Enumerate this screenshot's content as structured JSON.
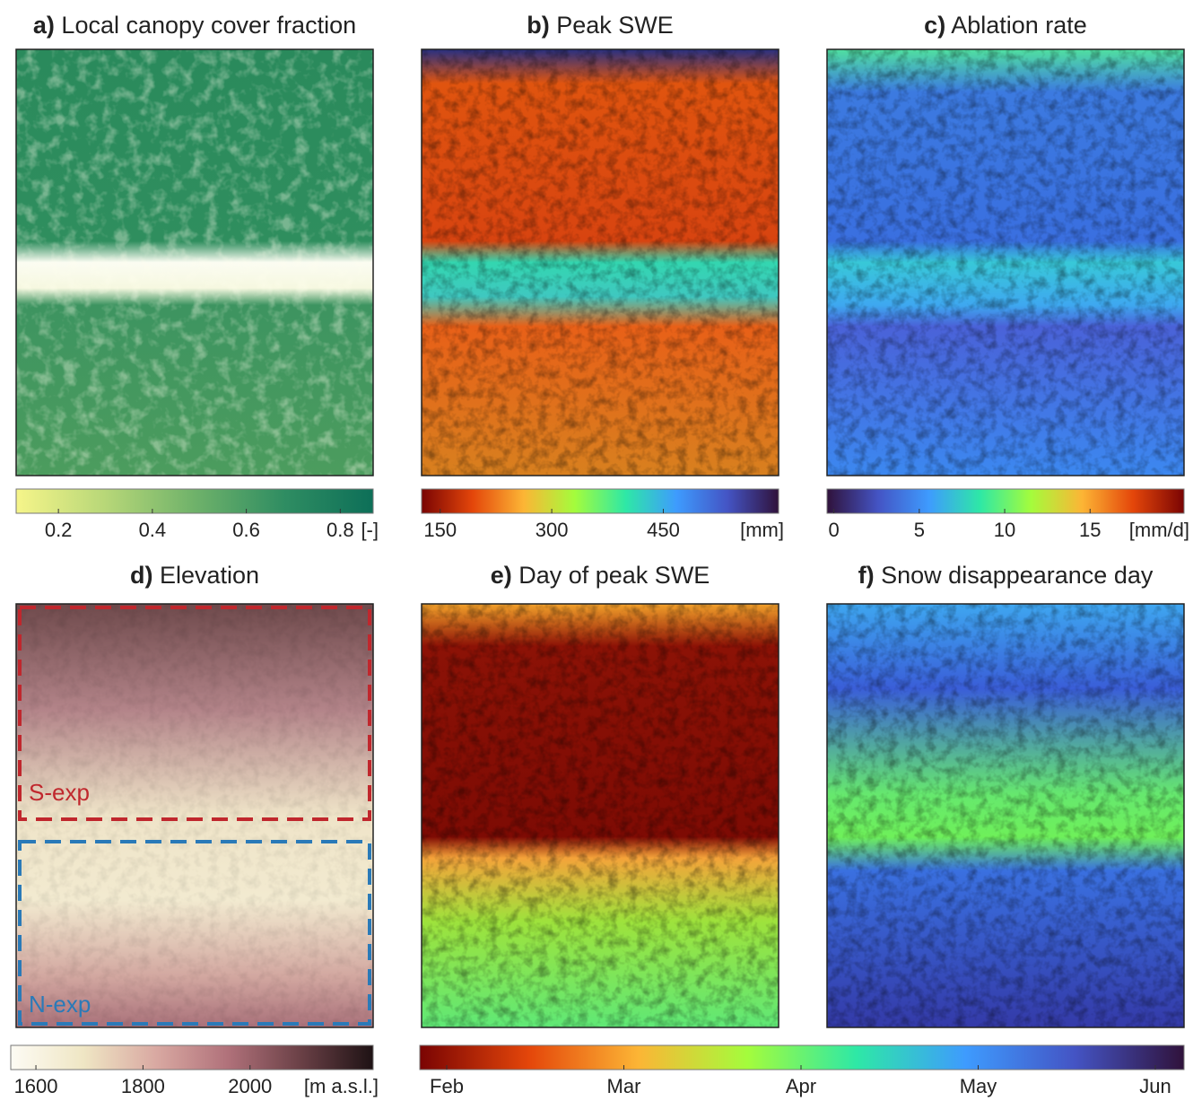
{
  "panels": [
    {
      "letter": "a)",
      "title": "Local canopy cover fraction",
      "colorbar": {
        "range": [
          0.11,
          0.87
        ],
        "ticks": [
          0.2,
          0.4,
          0.6,
          0.8
        ],
        "unit": "[-]",
        "colors": [
          "#f6f58a",
          "#b7d778",
          "#6fb26a",
          "#2f8d62",
          "#0d6f58"
        ]
      }
    },
    {
      "letter": "b)",
      "title": "Peak SWE",
      "colorbar": {
        "range": [
          125,
          605
        ],
        "ticks": [
          150,
          300,
          450
        ],
        "unit": "[mm]",
        "colors": [
          "#7a0403",
          "#e4460a",
          "#fcb535",
          "#a4fc3c",
          "#2ee8a6",
          "#3e9bfe",
          "#4454c4",
          "#30123b"
        ]
      }
    },
    {
      "letter": "c)",
      "title": "Ablation rate",
      "colorbar": {
        "range": [
          -0.4,
          20.5
        ],
        "ticks": [
          0,
          5,
          10,
          15
        ],
        "unit": "[mm/d]",
        "colors": [
          "#30123b",
          "#4454c4",
          "#3e9bfe",
          "#2ee8a6",
          "#a4fc3c",
          "#fcb535",
          "#e4460a",
          "#7a0403"
        ]
      }
    },
    {
      "letter": "d)",
      "title": "Elevation",
      "colorbar": {
        "range": [
          1553,
          2230
        ],
        "ticks": [
          1600,
          1800,
          2000
        ],
        "unit": "[m a.s.l.]",
        "colors": [
          "#fdfbf4",
          "#efe6c4",
          "#d9a9a2",
          "#b0717a",
          "#6a4046",
          "#1e1214"
        ]
      },
      "annotations": [
        "S-exp",
        "N-exp"
      ]
    },
    {
      "letter": "e)",
      "title": "Day of peak SWE"
    },
    {
      "letter": "f)",
      "title": "Snow disappearance day"
    }
  ],
  "shared_colorbar": {
    "categories": [
      "Feb",
      "Mar",
      "Apr",
      "May",
      "Jun"
    ],
    "colors": [
      "#7a0403",
      "#e4460a",
      "#fcb535",
      "#a4fc3c",
      "#2ee8a6",
      "#3e9bfe",
      "#4454c4",
      "#30123b"
    ]
  }
}
